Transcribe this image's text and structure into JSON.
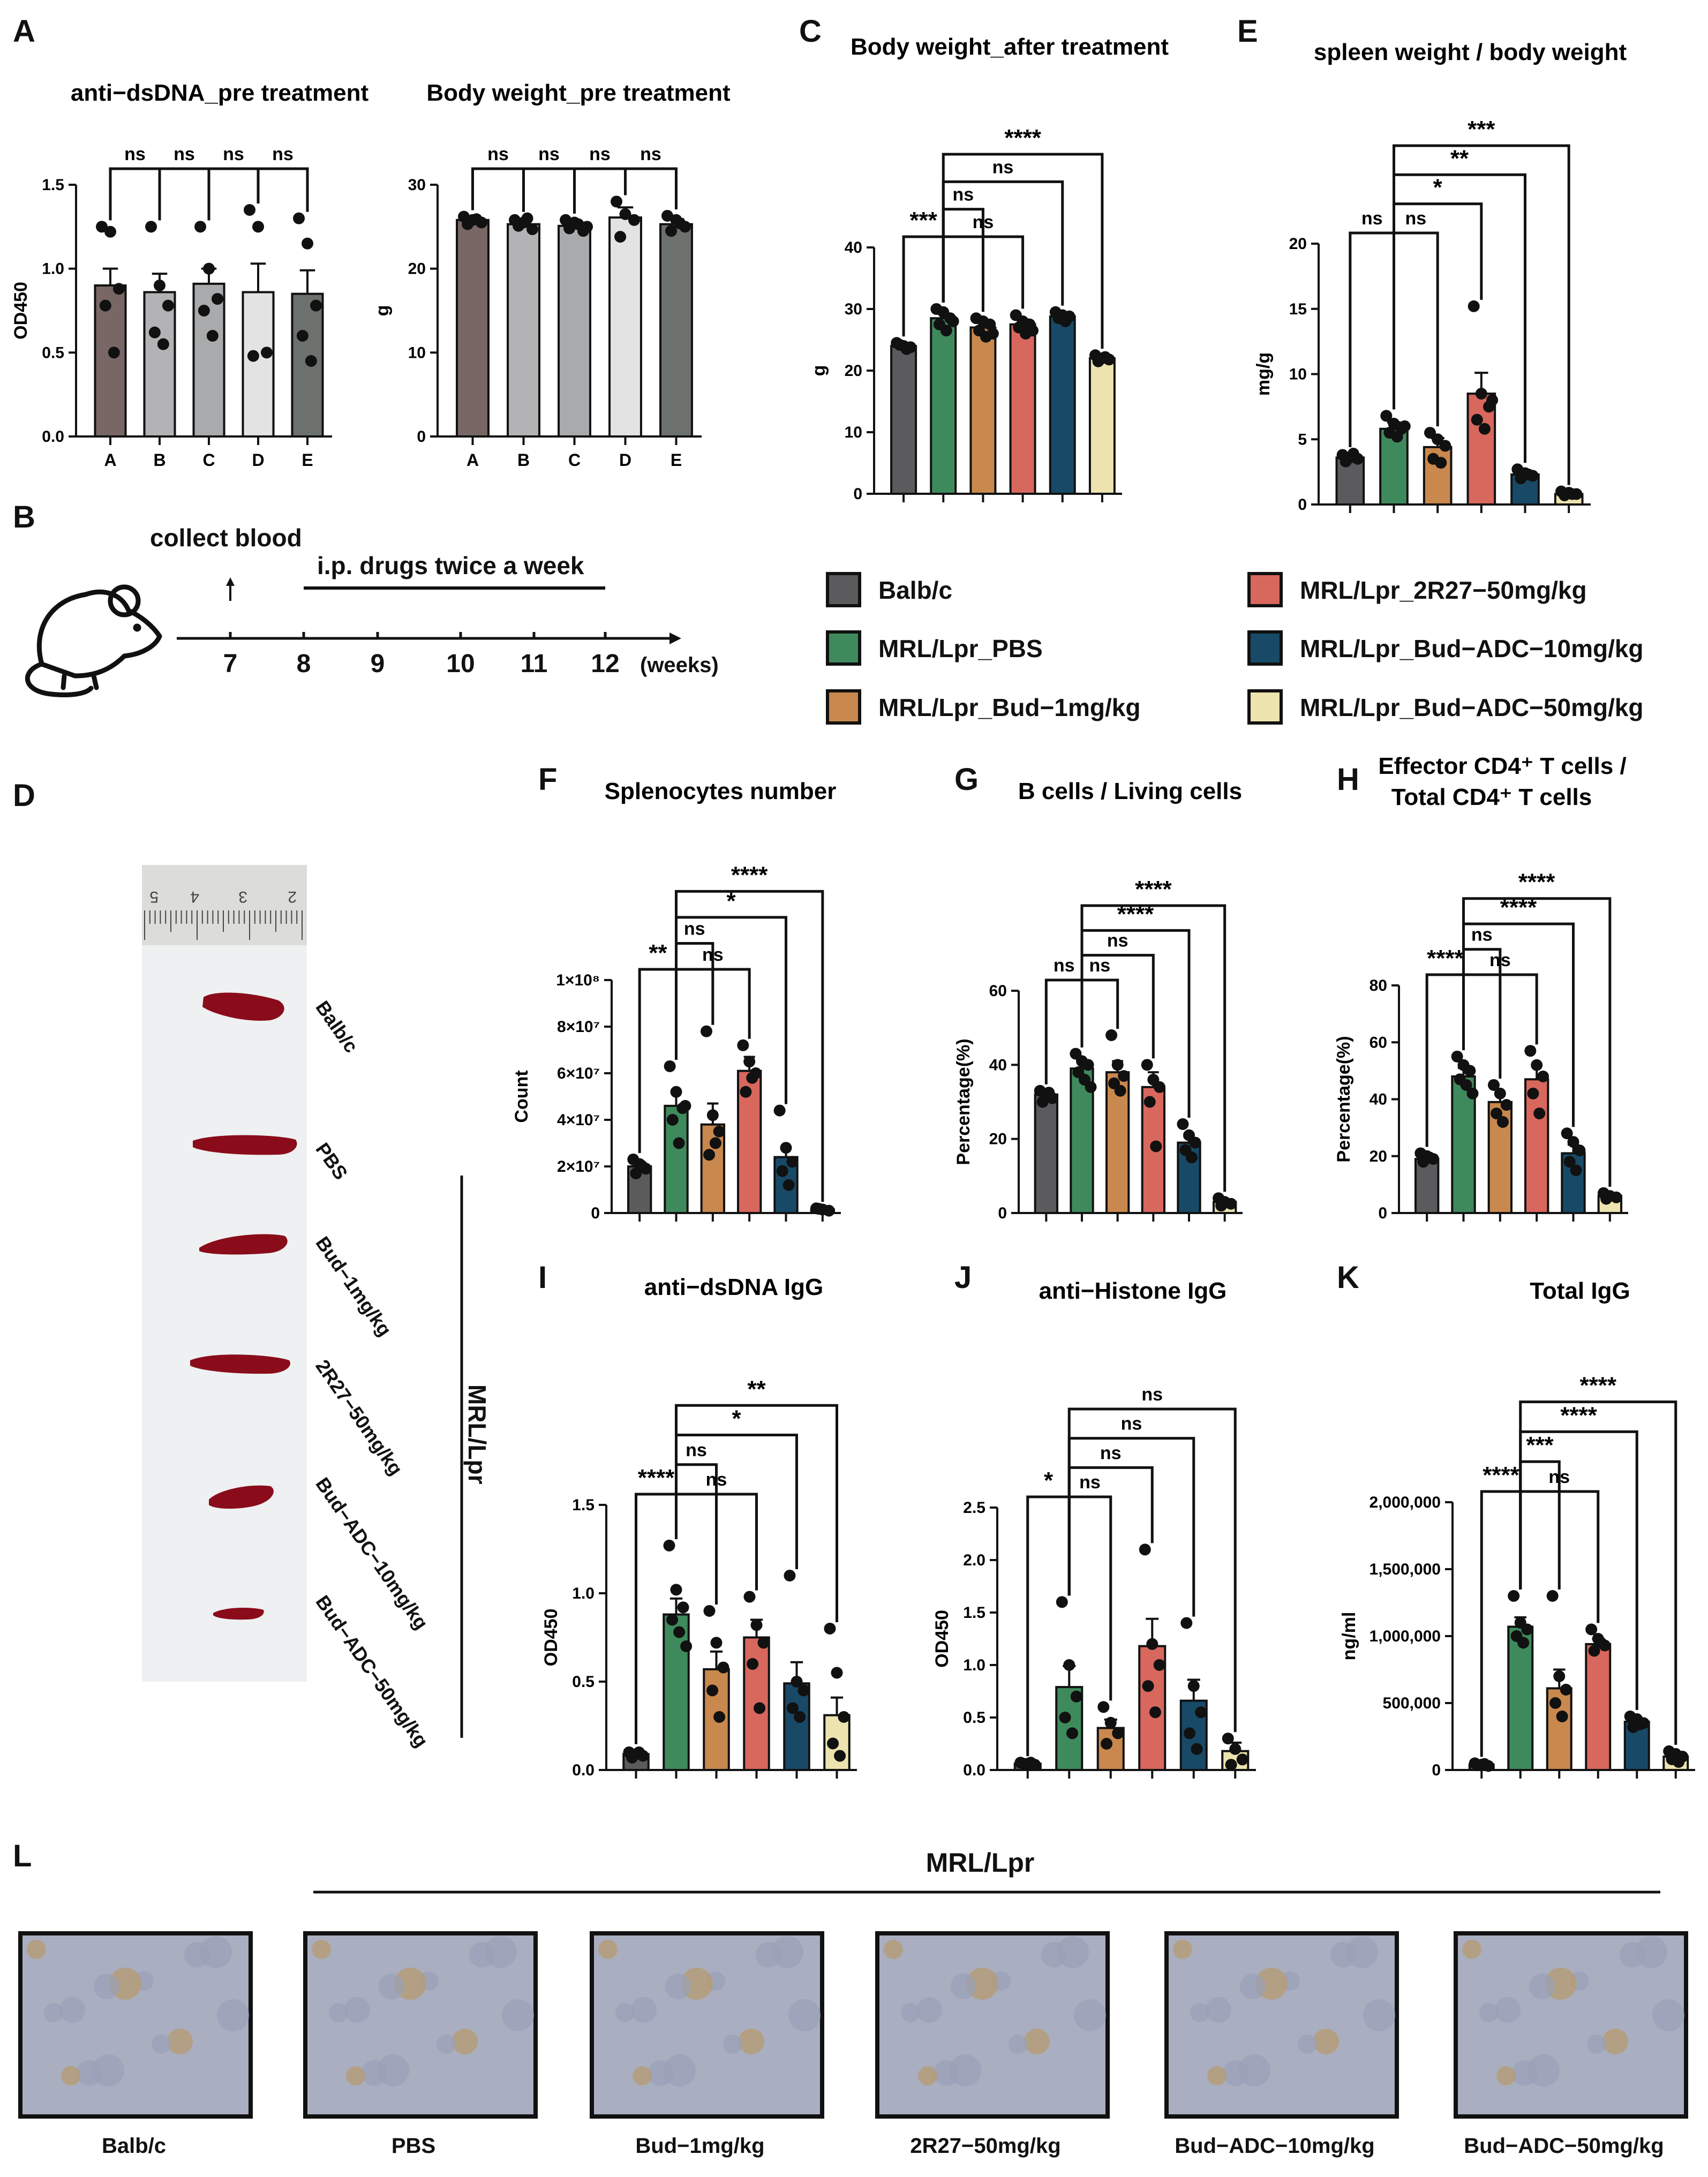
{
  "colors": {
    "Balb/c": "#5b5b5e",
    "MRL/Lpr_PBS": "#3f8a5c",
    "MRL/Lpr_Bud-1mg/kg": "#c9884d",
    "MRL/Lpr_2R27-50mg/kg": "#d8675e",
    "MRL/Lpr_Bud-ADC-10mg/kg": "#184a67",
    "MRL/Lpr_Bud-ADC-50mg/kg": "#ece3ae",
    "A": "#786764",
    "B": "#b3b3b6",
    "C": "#a9aaab",
    "D": "#e3e3e3",
    "E": "#6d716e"
  },
  "panel_letters": [
    "A",
    "B",
    "C",
    "D",
    "E",
    "F",
    "G",
    "H",
    "I",
    "J",
    "K",
    "L"
  ],
  "legend": [
    {
      "label": "Balb/c",
      "color": "#5b5b5e"
    },
    {
      "label": "MRL/Lpr_PBS",
      "color": "#3f8a5c"
    },
    {
      "label": "MRL/Lpr_Bud−1mg/kg",
      "color": "#c9884d"
    },
    {
      "label": "MRL/Lpr_2R27−50mg/kg",
      "color": "#d8675e"
    },
    {
      "label": "MRL/Lpr_Bud−ADC−10mg/kg",
      "color": "#184a67"
    },
    {
      "label": "MRL/Lpr_Bud−ADC−50mg/kg",
      "color": "#ece3ae"
    }
  ],
  "timeline": {
    "collect_label": "collect blood",
    "treat_label": "i.p. drugs twice a week",
    "ticks": [
      "7",
      "8",
      "9",
      "10",
      "11",
      "12"
    ],
    "unit": "(weeks)"
  },
  "photo": {
    "labels": [
      "Balb/c",
      "PBS",
      "Bud−1mg/kg",
      "2R27−50mg/kg",
      "Bud−ADC−10mg/kg",
      "Bud−ADC−50mg/kg"
    ],
    "group_label": "MRL/Lpr",
    "ruler_marks": [
      "5",
      "4",
      "3",
      "2"
    ]
  },
  "histology": {
    "header": "MRL/Lpr",
    "labels": [
      "Balb/c",
      "PBS",
      "Bud−1mg/kg",
      "2R27−50mg/kg",
      "Bud−ADC−10mg/kg",
      "Bud−ADC−50mg/kg"
    ]
  },
  "chart_data": [
    {
      "panel": "A",
      "type": "bar",
      "title": "anti−dsDNA_pre treatment",
      "ylabel": "OD450",
      "categories": [
        "A",
        "B",
        "C",
        "D",
        "E"
      ],
      "ylim": [
        0,
        1.5
      ],
      "yticks": [
        "0.0",
        "0.5",
        "1.0",
        "1.5"
      ],
      "values": [
        0.9,
        0.86,
        0.91,
        0.86,
        0.85
      ],
      "errors": [
        0.1,
        0.11,
        0.09,
        0.17,
        0.14
      ],
      "points": [
        [
          1.25,
          1.22,
          0.88,
          0.78,
          0.5
        ],
        [
          1.25,
          0.9,
          0.78,
          0.62,
          0.55
        ],
        [
          1.25,
          1.0,
          0.82,
          0.75,
          0.6
        ],
        [
          1.35,
          1.25,
          0.5,
          0.48
        ],
        [
          1.3,
          1.15,
          0.78,
          0.6,
          0.45
        ]
      ],
      "brackets": [
        {
          "from": 0,
          "to": 1,
          "label": "ns",
          "level": 1
        },
        {
          "from": 1,
          "to": 2,
          "label": "ns",
          "level": 1
        },
        {
          "from": 2,
          "to": 3,
          "label": "ns",
          "level": 1
        },
        {
          "from": 3,
          "to": 4,
          "label": "ns",
          "level": 1
        }
      ]
    },
    {
      "panel": "A2",
      "type": "bar",
      "title": "Body weight_pre treatment",
      "ylabel": "g",
      "categories": [
        "A",
        "B",
        "C",
        "D",
        "E"
      ],
      "ylim": [
        0,
        30
      ],
      "yticks": [
        "0",
        "10",
        "20",
        "30"
      ],
      "values": [
        25.8,
        25.3,
        25.1,
        26.1,
        25.3
      ],
      "errors": [
        0.4,
        0.5,
        0.6,
        1.2,
        0.6
      ],
      "points": [
        [
          26.2,
          25.8,
          25.5,
          25.3,
          25.9
        ],
        [
          25.8,
          25.5,
          24.7,
          25.1,
          26
        ],
        [
          25.8,
          25.5,
          24.5,
          24.8,
          25.3,
          25
        ],
        [
          28,
          26.5,
          25.8,
          23.8
        ],
        [
          26.3,
          25.8,
          25,
          24.5,
          25.4
        ]
      ],
      "brackets": [
        {
          "from": 0,
          "to": 1,
          "label": "ns",
          "level": 1
        },
        {
          "from": 1,
          "to": 2,
          "label": "ns",
          "level": 1
        },
        {
          "from": 2,
          "to": 3,
          "label": "ns",
          "level": 1
        },
        {
          "from": 3,
          "to": 4,
          "label": "ns",
          "level": 1
        }
      ]
    },
    {
      "panel": "C",
      "type": "bar",
      "title": "Body weight_after treatment",
      "ylabel": "g",
      "categories": [
        "Balb/c",
        "MRL/Lpr_PBS",
        "MRL/Lpr_Bud-1mg/kg",
        "MRL/Lpr_2R27-50mg/kg",
        "MRL/Lpr_Bud-ADC-10mg/kg",
        "MRL/Lpr_Bud-ADC-50mg/kg"
      ],
      "ylim": [
        0,
        40
      ],
      "yticks": [
        "0",
        "10",
        "20",
        "30",
        "40"
      ],
      "values": [
        24,
        28.5,
        27,
        27.5,
        28.8,
        22
      ],
      "errors": [
        0.5,
        0.8,
        0.9,
        0.8,
        0.4,
        0.4
      ],
      "points": [
        [
          24.5,
          24,
          23.8,
          24.2,
          23.5
        ],
        [
          30,
          29.5,
          28.5,
          27.5,
          26.5,
          28
        ],
        [
          28.5,
          28,
          27.5,
          26.5,
          25.5,
          26
        ],
        [
          29,
          28,
          27.5,
          27,
          26,
          26.5
        ],
        [
          29.5,
          29,
          28.8,
          28.5,
          28
        ],
        [
          22.5,
          22,
          21.8,
          21.5,
          22.2
        ]
      ],
      "brackets": [
        {
          "from": 0,
          "to": 1,
          "label": "***",
          "level": 1
        },
        {
          "from": 1,
          "to": 2,
          "label": "ns",
          "level": 2
        },
        {
          "from": 1,
          "to": 3,
          "label": "ns",
          "level": 1
        },
        {
          "from": 1,
          "to": 4,
          "label": "ns",
          "level": 3
        },
        {
          "from": 1,
          "to": 5,
          "label": "****",
          "level": 4
        }
      ]
    },
    {
      "panel": "E",
      "type": "bar",
      "title": "spleen weight / body weight",
      "ylabel": "mg/g",
      "categories": [
        "Balb/c",
        "MRL/Lpr_PBS",
        "MRL/Lpr_Bud-1mg/kg",
        "MRL/Lpr_2R27-50mg/kg",
        "MRL/Lpr_Bud-ADC-10mg/kg",
        "MRL/Lpr_Bud-ADC-50mg/kg"
      ],
      "ylim": [
        0,
        20
      ],
      "yticks": [
        "0",
        "5",
        "10",
        "15",
        "20"
      ],
      "values": [
        3.6,
        5.8,
        4.4,
        8.5,
        2.3,
        0.8
      ],
      "errors": [
        0.2,
        0.5,
        0.7,
        1.6,
        0.2,
        0.1
      ],
      "points": [
        [
          3.8,
          3.6,
          3.5,
          3.3,
          3.9
        ],
        [
          6.8,
          6.2,
          5.8,
          5.5,
          5.2,
          6
        ],
        [
          5.5,
          5,
          4.5,
          3.5,
          3.2
        ],
        [
          15.2,
          8.5,
          7.5,
          6.5,
          5.8,
          8
        ],
        [
          2.7,
          2.4,
          2.2,
          2,
          2.3
        ],
        [
          1,
          0.9,
          0.8,
          0.7,
          0.8
        ]
      ],
      "brackets": [
        {
          "from": 0,
          "to": 1,
          "label": "ns",
          "level": 1
        },
        {
          "from": 1,
          "to": 2,
          "label": "ns",
          "level": 1
        },
        {
          "from": 1,
          "to": 3,
          "label": "*",
          "level": 2
        },
        {
          "from": 1,
          "to": 4,
          "label": "**",
          "level": 3
        },
        {
          "from": 1,
          "to": 5,
          "label": "***",
          "level": 4
        }
      ]
    },
    {
      "panel": "F",
      "type": "bar",
      "title": "Splenocytes number",
      "ylabel": "Count",
      "categories": [
        "Balb/c",
        "MRL/Lpr_PBS",
        "MRL/Lpr_Bud-1mg/kg",
        "MRL/Lpr_2R27-50mg/kg",
        "MRL/Lpr_Bud-ADC-10mg/kg",
        "MRL/Lpr_Bud-ADC-50mg/kg"
      ],
      "ylim": [
        0,
        100000000
      ],
      "yticks": [
        "0",
        "2×10⁷",
        "4×10⁷",
        "6×10⁷",
        "8×10⁷",
        "1×10⁸"
      ],
      "values": [
        20000000,
        46000000,
        38000000,
        61000000,
        24000000,
        1500000
      ],
      "errors": [
        2000000,
        6000000,
        9000000,
        6000000,
        4000000,
        500000
      ],
      "points": [
        [
          23000000,
          21000000,
          19000000,
          17000000,
          20000000
        ],
        [
          63000000,
          52000000,
          45000000,
          40000000,
          30000000,
          46000000
        ],
        [
          78000000,
          42000000,
          35000000,
          25000000,
          30000000
        ],
        [
          72000000,
          65000000,
          60000000,
          52000000,
          58000000
        ],
        [
          44000000,
          28000000,
          22000000,
          18000000,
          12000000
        ],
        [
          2000000,
          1500000,
          1000000,
          1800000
        ]
      ],
      "brackets": [
        {
          "from": 0,
          "to": 1,
          "label": "**",
          "level": 1
        },
        {
          "from": 1,
          "to": 2,
          "label": "ns",
          "level": 2
        },
        {
          "from": 1,
          "to": 3,
          "label": "ns",
          "level": 1
        },
        {
          "from": 1,
          "to": 4,
          "label": "*",
          "level": 3
        },
        {
          "from": 1,
          "to": 5,
          "label": "****",
          "level": 4
        }
      ]
    },
    {
      "panel": "G",
      "type": "bar",
      "title": "B cells / Living cells",
      "ylabel": "Percentage(%)",
      "categories": [
        "Balb/c",
        "MRL/Lpr_PBS",
        "MRL/Lpr_Bud-1mg/kg",
        "MRL/Lpr_2R27-50mg/kg",
        "MRL/Lpr_Bud-ADC-10mg/kg",
        "MRL/Lpr_Bud-ADC-50mg/kg"
      ],
      "ylim": [
        0,
        60
      ],
      "yticks": [
        "0",
        "20",
        "40",
        "60"
      ],
      "values": [
        32,
        39,
        38,
        34,
        19,
        3
      ],
      "errors": [
        1,
        2,
        3,
        4,
        1.5,
        0.5
      ],
      "points": [
        [
          33,
          32,
          31,
          30,
          32.5
        ],
        [
          43,
          41,
          40,
          38,
          36,
          34
        ],
        [
          48,
          40,
          37,
          35,
          33
        ],
        [
          40,
          36,
          34,
          30,
          18
        ],
        [
          24,
          21,
          19,
          17,
          15
        ],
        [
          4,
          3,
          2.5,
          2
        ]
      ],
      "brackets": [
        {
          "from": 0,
          "to": 1,
          "label": "ns",
          "level": 1
        },
        {
          "from": 1,
          "to": 2,
          "label": "ns",
          "level": 1
        },
        {
          "from": 1,
          "to": 3,
          "label": "ns",
          "level": 2
        },
        {
          "from": 1,
          "to": 4,
          "label": "****",
          "level": 3
        },
        {
          "from": 1,
          "to": 5,
          "label": "****",
          "level": 4
        }
      ]
    },
    {
      "panel": "H",
      "type": "bar",
      "title": "Effector CD4⁺ T cells / Total CD4⁺ T cells",
      "ylabel": "Percentage(%)",
      "categories": [
        "Balb/c",
        "MRL/Lpr_PBS",
        "MRL/Lpr_Bud-1mg/kg",
        "MRL/Lpr_2R27-50mg/kg",
        "MRL/Lpr_Bud-ADC-10mg/kg",
        "MRL/Lpr_Bud-ADC-50mg/kg"
      ],
      "ylim": [
        0,
        80
      ],
      "yticks": [
        "0",
        "20",
        "40",
        "60",
        "80"
      ],
      "values": [
        19,
        48,
        39,
        47,
        21,
        6
      ],
      "errors": [
        1,
        3,
        3,
        5,
        3,
        1
      ],
      "points": [
        [
          21,
          20,
          19,
          18,
          19.5
        ],
        [
          55,
          52,
          50,
          47,
          45,
          42
        ],
        [
          45,
          42,
          38,
          35,
          32
        ],
        [
          57,
          52,
          48,
          42,
          35
        ],
        [
          28,
          25,
          22,
          18,
          15
        ],
        [
          7,
          6,
          5.5,
          5
        ]
      ],
      "brackets": [
        {
          "from": 0,
          "to": 1,
          "label": "****",
          "level": 1
        },
        {
          "from": 1,
          "to": 2,
          "label": "ns",
          "level": 2
        },
        {
          "from": 1,
          "to": 3,
          "label": "ns",
          "level": 1
        },
        {
          "from": 1,
          "to": 4,
          "label": "****",
          "level": 3
        },
        {
          "from": 1,
          "to": 5,
          "label": "****",
          "level": 4
        }
      ]
    },
    {
      "panel": "I",
      "type": "bar",
      "title": "anti−dsDNA IgG",
      "ylabel": "OD450",
      "categories": [
        "Balb/c",
        "MRL/Lpr_PBS",
        "MRL/Lpr_Bud-1mg/kg",
        "MRL/Lpr_2R27-50mg/kg",
        "MRL/Lpr_Bud-ADC-10mg/kg",
        "MRL/Lpr_Bud-ADC-50mg/kg"
      ],
      "ylim": [
        0,
        1.5
      ],
      "yticks": [
        "0.0",
        "0.5",
        "1.0",
        "1.5"
      ],
      "values": [
        0.09,
        0.88,
        0.57,
        0.75,
        0.49,
        0.31
      ],
      "errors": [
        0.02,
        0.09,
        0.1,
        0.1,
        0.12,
        0.1
      ],
      "points": [
        [
          0.1,
          0.09,
          0.08,
          0.07,
          0.1
        ],
        [
          1.27,
          1.02,
          0.92,
          0.85,
          0.78,
          0.7
        ],
        [
          0.9,
          0.72,
          0.58,
          0.45,
          0.3
        ],
        [
          0.98,
          0.82,
          0.72,
          0.6,
          0.35
        ],
        [
          1.1,
          0.5,
          0.45,
          0.35,
          0.3
        ],
        [
          0.8,
          0.55,
          0.3,
          0.15,
          0.08
        ]
      ],
      "brackets": [
        {
          "from": 0,
          "to": 1,
          "label": "****",
          "level": 1
        },
        {
          "from": 1,
          "to": 2,
          "label": "ns",
          "level": 2
        },
        {
          "from": 1,
          "to": 3,
          "label": "ns",
          "level": 1
        },
        {
          "from": 1,
          "to": 4,
          "label": "*",
          "level": 3
        },
        {
          "from": 1,
          "to": 5,
          "label": "**",
          "level": 4
        }
      ]
    },
    {
      "panel": "J",
      "type": "bar",
      "title": "anti−Histone IgG",
      "ylabel": "OD450",
      "categories": [
        "Balb/c",
        "MRL/Lpr_PBS",
        "MRL/Lpr_Bud-1mg/kg",
        "MRL/Lpr_2R27-50mg/kg",
        "MRL/Lpr_Bud-ADC-10mg/kg",
        "MRL/Lpr_Bud-ADC-50mg/kg"
      ],
      "ylim": [
        0,
        2.5
      ],
      "yticks": [
        "0.0",
        "0.5",
        "1.0",
        "1.5",
        "2.0",
        "2.5"
      ],
      "values": [
        0.06,
        0.79,
        0.4,
        1.18,
        0.66,
        0.18
      ],
      "errors": [
        0.01,
        0.2,
        0.08,
        0.26,
        0.2,
        0.08
      ],
      "points": [
        [
          0.07,
          0.06,
          0.05,
          0.06,
          0.07
        ],
        [
          1.6,
          1.0,
          0.7,
          0.5,
          0.35
        ],
        [
          0.6,
          0.45,
          0.35,
          0.25
        ],
        [
          2.1,
          1.2,
          1.0,
          0.8,
          0.55
        ],
        [
          1.4,
          0.8,
          0.55,
          0.35,
          0.2
        ],
        [
          0.3,
          0.2,
          0.1,
          0.05
        ]
      ],
      "brackets": [
        {
          "from": 0,
          "to": 1,
          "label": "*",
          "level": 1
        },
        {
          "from": 1,
          "to": 2,
          "label": "ns",
          "level": 1
        },
        {
          "from": 1,
          "to": 3,
          "label": "ns",
          "level": 2
        },
        {
          "from": 1,
          "to": 4,
          "label": "ns",
          "level": 3
        },
        {
          "from": 1,
          "to": 5,
          "label": "ns",
          "level": 4
        }
      ]
    },
    {
      "panel": "K",
      "type": "bar",
      "title": "Total IgG",
      "ylabel": "ng/ml",
      "categories": [
        "Balb/c",
        "MRL/Lpr_PBS",
        "MRL/Lpr_Bud-1mg/kg",
        "MRL/Lpr_2R27-50mg/kg",
        "MRL/Lpr_Bud-ADC-10mg/kg",
        "MRL/Lpr_Bud-ADC-50mg/kg"
      ],
      "ylim": [
        0,
        2000000
      ],
      "yticks": [
        "0",
        "500,000",
        "1,000,000",
        "1,500,000",
        "2,000,000"
      ],
      "values": [
        40000,
        1070000,
        610000,
        940000,
        360000,
        100000
      ],
      "errors": [
        10000,
        70000,
        140000,
        40000,
        20000,
        20000
      ],
      "points": [
        [
          50000,
          40000,
          30000,
          35000,
          45000
        ],
        [
          1300000,
          1100000,
          1050000,
          1000000,
          950000
        ],
        [
          1300000,
          700000,
          600000,
          500000,
          400000
        ],
        [
          1050000,
          980000,
          930000,
          890000,
          950000
        ],
        [
          400000,
          380000,
          350000,
          320000,
          340000
        ],
        [
          140000,
          120000,
          100000,
          80000,
          60000
        ]
      ],
      "brackets": [
        {
          "from": 0,
          "to": 1,
          "label": "****",
          "level": 1
        },
        {
          "from": 1,
          "to": 2,
          "label": "***",
          "level": 2
        },
        {
          "from": 1,
          "to": 3,
          "label": "ns",
          "level": 1
        },
        {
          "from": 1,
          "to": 4,
          "label": "****",
          "level": 3
        },
        {
          "from": 1,
          "to": 5,
          "label": "****",
          "level": 4
        }
      ]
    }
  ]
}
